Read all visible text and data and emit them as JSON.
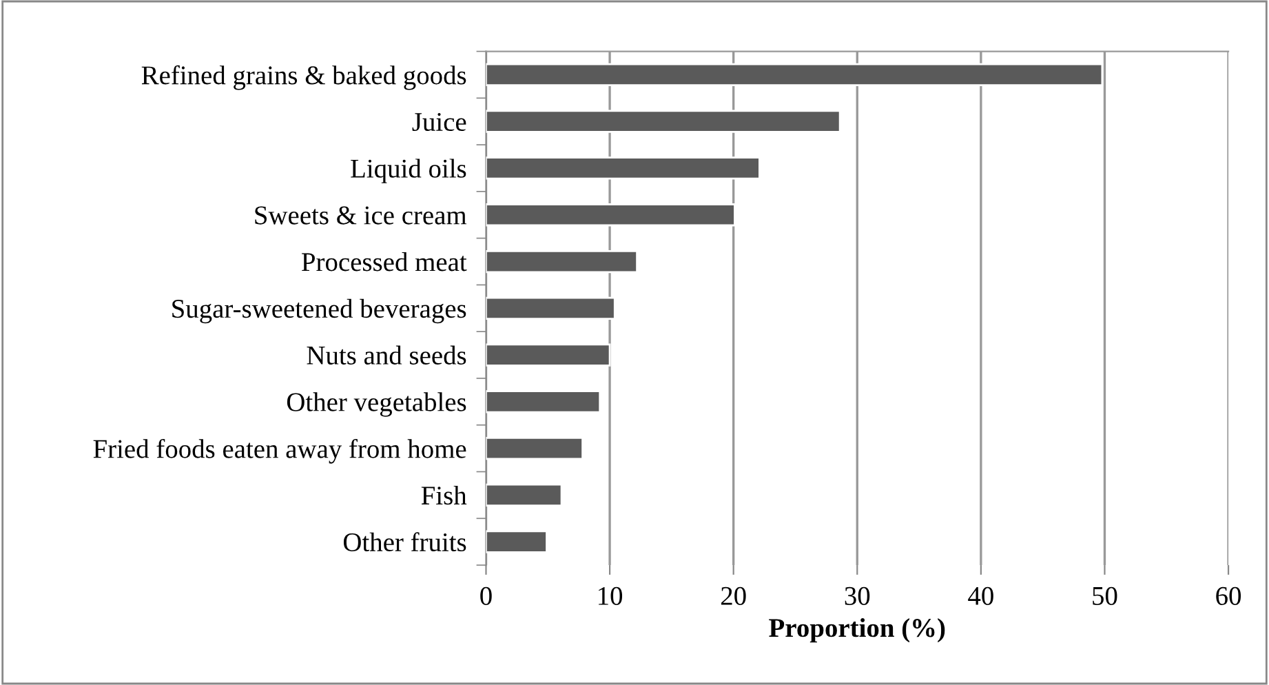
{
  "chart_data": {
    "type": "bar",
    "orientation": "horizontal",
    "categories": [
      "Refined grains & baked goods",
      "Juice",
      "Liquid oils",
      "Sweets & ice cream",
      "Processed meat",
      "Sugar-sweetened beverages",
      "Nuts and seeds",
      "Other vegetables",
      "Fried foods eaten away from home",
      "Fish",
      "Other fruits"
    ],
    "values": [
      49.8,
      28.6,
      22.1,
      20.1,
      12.2,
      10.4,
      10.0,
      9.2,
      7.8,
      6.1,
      4.9
    ],
    "color": "#5a5a5a",
    "xlim": [
      0,
      60
    ],
    "xticks": [
      0,
      10,
      20,
      30,
      40,
      50,
      60
    ],
    "xlabel": "Proportion (%)",
    "grid": "x"
  }
}
